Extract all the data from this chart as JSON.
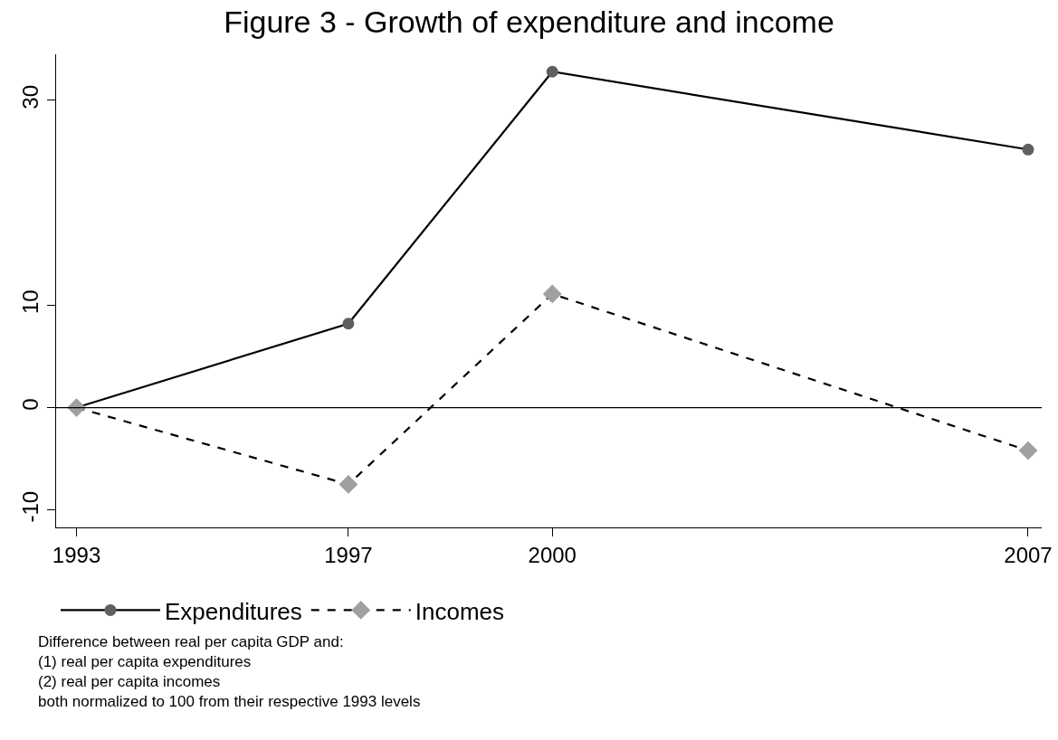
{
  "chart_data": {
    "type": "line",
    "title": "Figure 3 - Growth of expenditure and income",
    "x": [
      1993,
      1997,
      2000,
      2007
    ],
    "series": [
      {
        "name": "Expenditures",
        "color": "#5f5f5f",
        "values": [
          0,
          8.2,
          32.8,
          25.2
        ],
        "marker": "circle",
        "line_style": "solid"
      },
      {
        "name": "Incomes",
        "color": "#a0a0a0",
        "values": [
          0,
          -7.5,
          11.1,
          -4.2
        ],
        "marker": "diamond",
        "line_style": "dashed"
      }
    ],
    "xlim": [
      1992.7,
      2007.2
    ],
    "xticks": [
      1993,
      1997,
      2000,
      2007
    ],
    "ylim": [
      -11.7,
      34.5
    ],
    "yticks": [
      -10,
      0,
      10,
      30
    ],
    "ref_lines": [
      {
        "axis": "y",
        "value": 0,
        "color": "#000000"
      }
    ],
    "grid": false,
    "legend": "bottom",
    "annotations": [
      "Difference between real per capita GDP and:\n(1) real per capita expenditures\n(2) real per capita incomes\nboth normalized to 100 from their respective 1993 levels"
    ]
  }
}
